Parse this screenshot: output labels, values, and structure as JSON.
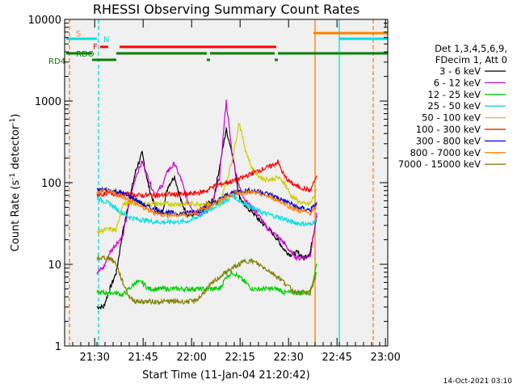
{
  "colors": {
    "background": "#ffffff",
    "plot_bg": "#f0f0f0",
    "axes": "#000000"
  },
  "chart_data": {
    "type": "line",
    "title": "RHESSI Observing Summary Count Rates",
    "xlabel": "Start Time (11-Jan-04 21:20:42)",
    "ylabel": "Count Rate (s",
    "ylabel_sup1": "-1",
    "ylabel_mid": " detector",
    "ylabel_sup2": "-1",
    "ylabel_end": ")",
    "yscale": "log",
    "ylim": [
      1,
      10000
    ],
    "xlim_minutes": [
      0,
      100
    ],
    "x_ticks": [
      {
        "minute": 9.3,
        "label": "21:30"
      },
      {
        "minute": 24.3,
        "label": "21:45"
      },
      {
        "minute": 39.3,
        "label": "22:00"
      },
      {
        "minute": 54.3,
        "label": "22:15"
      },
      {
        "minute": 69.3,
        "label": "22:30"
      },
      {
        "minute": 84.3,
        "label": "22:45"
      },
      {
        "minute": 99.3,
        "label": "23:00"
      }
    ],
    "y_ticks": [
      {
        "value": 1,
        "label": "1"
      },
      {
        "value": 10,
        "label": "10"
      },
      {
        "value": 100,
        "label": "100"
      },
      {
        "value": 1000,
        "label": "1000"
      },
      {
        "value": 10000,
        "label": "10000"
      }
    ],
    "legend_header": [
      "Det 1,3,4,5,6,9,",
      "FDecim 1, Att 0"
    ],
    "timestamp": "14-Oct-2021 03:10",
    "series": [
      {
        "name": "3 - 6 keV",
        "color": "#000000",
        "x": [
          0,
          2,
          4,
          6,
          8,
          10,
          12,
          14,
          16,
          18,
          20,
          22,
          24,
          26,
          28,
          30,
          32,
          34,
          36,
          38,
          40,
          42,
          44,
          46,
          48,
          50,
          52,
          54,
          56,
          58,
          60,
          62,
          64,
          66,
          68,
          70,
          72,
          74,
          76,
          78,
          80
        ],
        "y": [
          null,
          null,
          null,
          null,
          null,
          3,
          3,
          5,
          8,
          25,
          60,
          140,
          230,
          90,
          50,
          40,
          90,
          120,
          60,
          40,
          40,
          45,
          55,
          60,
          160,
          450,
          220,
          70,
          50,
          45,
          35,
          30,
          25,
          20,
          15,
          13,
          14,
          12,
          14,
          40,
          null
        ]
      },
      {
        "name": "6 - 12 keV",
        "color": "#cc00cc",
        "x": [
          0,
          2,
          4,
          6,
          8,
          10,
          12,
          14,
          16,
          18,
          20,
          22,
          24,
          26,
          28,
          30,
          32,
          34,
          36,
          38,
          40,
          42,
          44,
          46,
          48,
          50,
          52,
          54,
          56,
          58,
          60,
          62,
          64,
          66,
          68,
          70,
          72,
          74,
          76,
          78,
          80
        ],
        "y": [
          null,
          null,
          null,
          null,
          null,
          8,
          9,
          14,
          18,
          22,
          55,
          120,
          180,
          110,
          70,
          90,
          140,
          170,
          110,
          60,
          45,
          40,
          45,
          60,
          120,
          1000,
          200,
          90,
          60,
          50,
          40,
          30,
          25,
          22,
          18,
          14,
          12,
          12,
          13,
          40,
          null
        ]
      },
      {
        "name": "12 - 25 keV",
        "color": "#00cc00",
        "x": [
          0,
          2,
          4,
          6,
          8,
          10,
          12,
          14,
          16,
          18,
          20,
          22,
          24,
          26,
          28,
          30,
          32,
          34,
          36,
          38,
          40,
          42,
          44,
          46,
          48,
          50,
          52,
          54,
          56,
          58,
          60,
          62,
          64,
          66,
          68,
          70,
          72,
          74,
          76,
          78,
          80
        ],
        "y": [
          null,
          null,
          null,
          null,
          null,
          4.5,
          4.5,
          4.5,
          4.5,
          4.2,
          5,
          6,
          6,
          5,
          5,
          5,
          5,
          5,
          5,
          5,
          5,
          5,
          5,
          5,
          5,
          7,
          8,
          7,
          6,
          5,
          5,
          5,
          5,
          5,
          4.5,
          4.5,
          4.5,
          4.5,
          4.5,
          10,
          null
        ]
      },
      {
        "name": "25 - 50 keV",
        "color": "#00e0e0",
        "x": [
          0,
          2,
          4,
          6,
          8,
          10,
          12,
          14,
          16,
          18,
          20,
          22,
          24,
          26,
          28,
          30,
          32,
          34,
          36,
          38,
          40,
          42,
          44,
          46,
          48,
          50,
          52,
          54,
          56,
          58,
          60,
          62,
          64,
          66,
          68,
          70,
          72,
          74,
          76,
          78,
          80
        ],
        "y": [
          null,
          null,
          null,
          null,
          null,
          65,
          60,
          55,
          48,
          42,
          38,
          36,
          35,
          34,
          33,
          33,
          33,
          33,
          33,
          34,
          36,
          40,
          45,
          50,
          55,
          60,
          70,
          60,
          55,
          50,
          45,
          42,
          40,
          38,
          36,
          33,
          32,
          31,
          31,
          35,
          null
        ]
      },
      {
        "name": "50 - 100 keV",
        "color": "#cccc00",
        "x": [
          0,
          2,
          4,
          6,
          8,
          10,
          12,
          14,
          16,
          18,
          20,
          22,
          24,
          26,
          28,
          30,
          32,
          34,
          36,
          38,
          40,
          42,
          44,
          46,
          48,
          50,
          52,
          54,
          56,
          58,
          60,
          62,
          64,
          66,
          68,
          70,
          72,
          74,
          76,
          78,
          80
        ],
        "y": [
          null,
          null,
          null,
          null,
          null,
          25,
          26,
          27,
          26,
          55,
          55,
          55,
          55,
          55,
          55,
          55,
          55,
          55,
          55,
          55,
          55,
          55,
          55,
          55,
          55,
          100,
          200,
          550,
          250,
          150,
          120,
          110,
          110,
          115,
          100,
          70,
          60,
          55,
          55,
          80,
          null
        ]
      },
      {
        "name": "100 - 300 keV",
        "color": "#ff0000",
        "x": [
          0,
          2,
          4,
          6,
          8,
          10,
          12,
          14,
          16,
          18,
          20,
          22,
          24,
          26,
          28,
          30,
          32,
          34,
          36,
          38,
          40,
          42,
          44,
          46,
          48,
          50,
          52,
          54,
          56,
          58,
          60,
          62,
          64,
          66,
          68,
          70,
          72,
          74,
          76,
          78,
          80
        ],
        "y": [
          null,
          null,
          null,
          null,
          null,
          72,
          72,
          75,
          72,
          72,
          72,
          70,
          70,
          70,
          70,
          70,
          72,
          72,
          72,
          72,
          74,
          76,
          80,
          90,
          95,
          100,
          105,
          110,
          120,
          130,
          140,
          150,
          160,
          180,
          120,
          100,
          90,
          85,
          80,
          120,
          null
        ]
      },
      {
        "name": "300 - 800 keV",
        "color": "#0000cc",
        "x": [
          0,
          2,
          4,
          6,
          8,
          10,
          12,
          14,
          16,
          18,
          20,
          22,
          24,
          26,
          28,
          30,
          32,
          34,
          36,
          38,
          40,
          42,
          44,
          46,
          48,
          50,
          52,
          54,
          56,
          58,
          60,
          62,
          64,
          66,
          68,
          70,
          72,
          74,
          76,
          78,
          80
        ],
        "y": [
          null,
          null,
          null,
          null,
          null,
          80,
          82,
          80,
          78,
          74,
          68,
          62,
          55,
          50,
          46,
          44,
          43,
          42,
          42,
          43,
          44,
          46,
          50,
          56,
          62,
          70,
          75,
          78,
          80,
          80,
          78,
          75,
          70,
          65,
          60,
          55,
          50,
          48,
          46,
          55,
          null
        ]
      },
      {
        "name": "800 - 7000 keV",
        "color": "#ff8000",
        "x": [
          0,
          2,
          4,
          6,
          8,
          10,
          12,
          14,
          16,
          18,
          20,
          22,
          24,
          26,
          28,
          30,
          32,
          34,
          36,
          38,
          40,
          42,
          44,
          46,
          48,
          50,
          52,
          54,
          56,
          58,
          60,
          62,
          64,
          66,
          68,
          70,
          72,
          74,
          76,
          78,
          80
        ],
        "y": [
          null,
          null,
          null,
          null,
          null,
          75,
          78,
          76,
          72,
          68,
          62,
          56,
          50,
          46,
          43,
          41,
          40,
          40,
          40,
          41,
          43,
          46,
          50,
          55,
          60,
          67,
          72,
          75,
          76,
          76,
          74,
          70,
          66,
          61,
          56,
          50,
          46,
          44,
          42,
          50,
          null
        ]
      },
      {
        "name": "7000 - 15000 keV",
        "color": "#808000",
        "x": [
          0,
          2,
          4,
          6,
          8,
          10,
          12,
          14,
          16,
          18,
          20,
          22,
          24,
          26,
          28,
          30,
          32,
          34,
          36,
          38,
          40,
          42,
          44,
          46,
          48,
          50,
          52,
          54,
          56,
          58,
          60,
          62,
          64,
          66,
          68,
          70,
          72,
          74,
          76,
          78,
          80
        ],
        "y": [
          null,
          null,
          null,
          null,
          null,
          12,
          12,
          12,
          10,
          6,
          4,
          3.5,
          3.5,
          3.5,
          3.5,
          3.5,
          3.5,
          3.5,
          3.5,
          3.5,
          3.5,
          4,
          5,
          6,
          7,
          8,
          9,
          10,
          11,
          11,
          10,
          9,
          8,
          7,
          6,
          5,
          4.5,
          4.5,
          4.5,
          8,
          null
        ]
      }
    ],
    "flags": {
      "red_segments": [
        [
          11,
          13.5
        ],
        [
          17,
          65.5
        ]
      ],
      "green_segments": [
        [
          0.5,
          8.5
        ],
        [
          8.5,
          16
        ],
        [
          16,
          44
        ],
        [
          44,
          45
        ],
        [
          45,
          65
        ],
        [
          65,
          66
        ],
        [
          66,
          100
        ]
      ],
      "cyan_segments": [
        [
          0.5,
          10
        ],
        [
          85,
          100
        ]
      ],
      "orange_segments": [
        [
          77,
          100
        ]
      ],
      "labels": [
        {
          "text": "S",
          "color": "#ff8000"
        },
        {
          "text": "N",
          "color": "#00e0e0"
        },
        {
          "text": "F",
          "color": "#ff0000"
        },
        {
          "text": "RDO",
          "color": "#008000"
        },
        {
          "text": "RD4",
          "color": "#008000"
        }
      ]
    },
    "vertical_lines": [
      {
        "minute": 1.5,
        "color": "#ff8000",
        "dash": true
      },
      {
        "minute": 10.5,
        "color": "#00e0e0",
        "dash": true
      },
      {
        "minute": 77.5,
        "color": "#ff8000",
        "dash": false
      },
      {
        "minute": 85,
        "color": "#00e0e0",
        "dash": false
      },
      {
        "minute": 95.5,
        "color": "#ff8000",
        "dash": true
      }
    ],
    "grid": false,
    "legend_position": "right"
  }
}
